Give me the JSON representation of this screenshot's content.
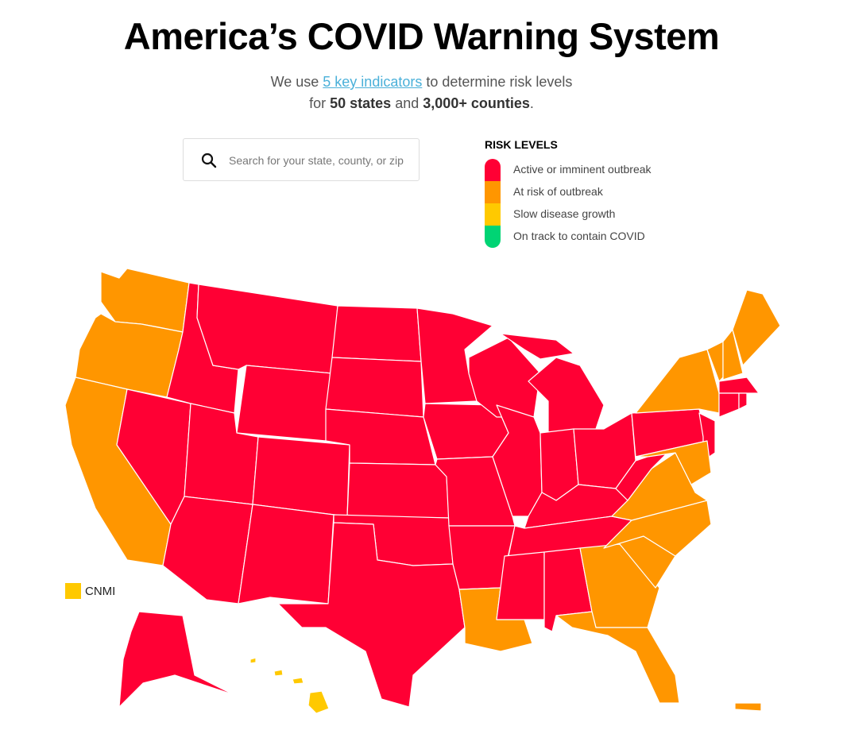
{
  "header": {
    "title": "America’s COVID Warning System",
    "subtitle": {
      "prefix": "We use",
      "link": "5 key indicators",
      "line1_rest": "to determine risk levels",
      "line2_prefix": "for",
      "states": "50 states",
      "joiner": "and",
      "counties": "3,000+ counties",
      "end": "."
    }
  },
  "search": {
    "placeholder": "Search for your state, county, or zip"
  },
  "legend": {
    "title": "RISK LEVELS",
    "items": [
      {
        "label": "Active or imminent outbreak",
        "color": "#ff0034"
      },
      {
        "label": "At risk of outbreak",
        "color": "#ff9600"
      },
      {
        "label": "Slow disease growth",
        "color": "#ffc900"
      },
      {
        "label": "On track to contain COVID",
        "color": "#00d474"
      }
    ]
  },
  "map": {
    "territory_label": "CNMI"
  }
}
